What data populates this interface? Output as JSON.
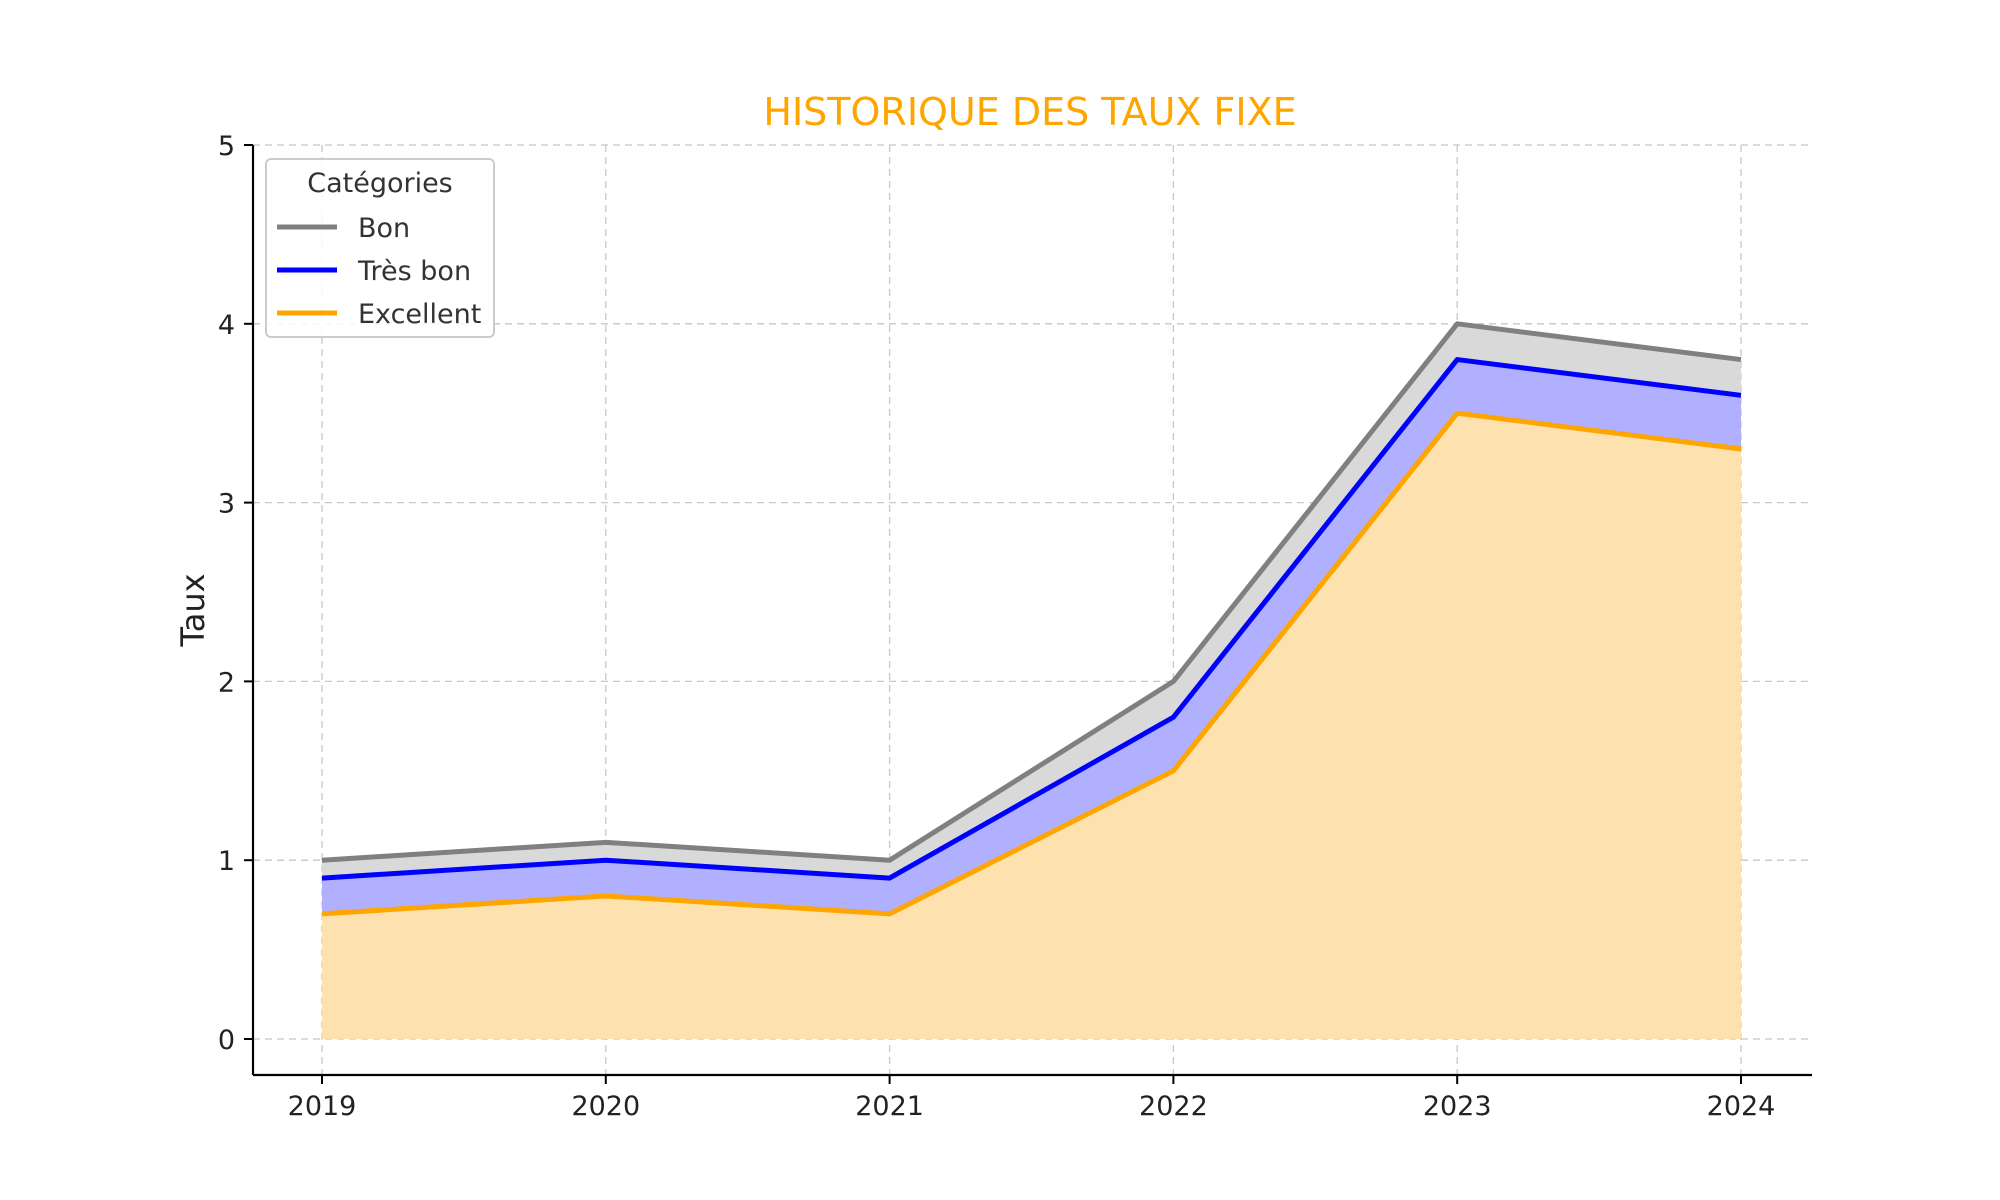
{
  "chart_data": {
    "type": "area",
    "title": "HISTORIQUE DES TAUX FIXE",
    "title_color": "#FFA500",
    "xlabel": "",
    "ylabel": "Taux",
    "x": [
      "2019",
      "2020",
      "2021",
      "2022",
      "2023",
      "2024"
    ],
    "ylim": [
      0,
      5
    ],
    "yticks": [
      "0",
      "1",
      "2",
      "3",
      "4",
      "5"
    ],
    "grid": true,
    "legend": {
      "title": "Catégories",
      "placement": "top-left"
    },
    "series": [
      {
        "name": "Bon",
        "values": [
          1.0,
          1.1,
          1.0,
          2.0,
          4.0,
          3.8
        ],
        "color": "#808080",
        "fill": "#d9d9d9"
      },
      {
        "name": "Très bon",
        "values": [
          0.9,
          1.0,
          0.9,
          1.8,
          3.8,
          3.6
        ],
        "color": "#0000FF",
        "fill": "#b0b0ff"
      },
      {
        "name": "Excellent",
        "values": [
          0.7,
          0.8,
          0.7,
          1.5,
          3.5,
          3.3
        ],
        "color": "#FFA500",
        "fill": "#fde2b0"
      }
    ]
  }
}
